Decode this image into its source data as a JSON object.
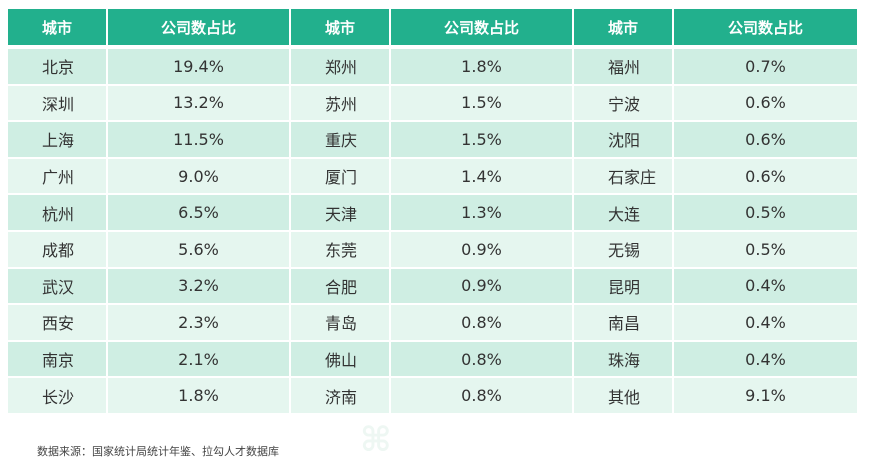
{
  "table": {
    "headers": [
      "城市",
      "公司数占比",
      "城市",
      "公司数占比",
      "城市",
      "公司数占比"
    ],
    "rows": [
      [
        "北京",
        "19.4%",
        "郑州",
        "1.8%",
        "福州",
        "0.7%"
      ],
      [
        "深圳",
        "13.2%",
        "苏州",
        "1.5%",
        "宁波",
        "0.6%"
      ],
      [
        "上海",
        "11.5%",
        "重庆",
        "1.5%",
        "沈阳",
        "0.6%"
      ],
      [
        "广州",
        "9.0%",
        "厦门",
        "1.4%",
        "石家庄",
        "0.6%"
      ],
      [
        "杭州",
        "6.5%",
        "天津",
        "1.3%",
        "大连",
        "0.5%"
      ],
      [
        "成都",
        "5.6%",
        "东莞",
        "0.9%",
        "无锡",
        "0.5%"
      ],
      [
        "武汉",
        "3.2%",
        "合肥",
        "0.9%",
        "昆明",
        "0.4%"
      ],
      [
        "西安",
        "2.3%",
        "青岛",
        "0.8%",
        "南昌",
        "0.4%"
      ],
      [
        "南京",
        "2.1%",
        "佛山",
        "0.8%",
        "珠海",
        "0.4%"
      ],
      [
        "长沙",
        "1.8%",
        "济南",
        "0.8%",
        "其他",
        "9.1%"
      ]
    ]
  },
  "footnote": "数据来源：国家统计局统计年鉴、拉勾人才数据库",
  "colors": {
    "header_bg": "#22b08d",
    "row_dark": "#cfeee3",
    "row_light": "#e5f6ef"
  }
}
